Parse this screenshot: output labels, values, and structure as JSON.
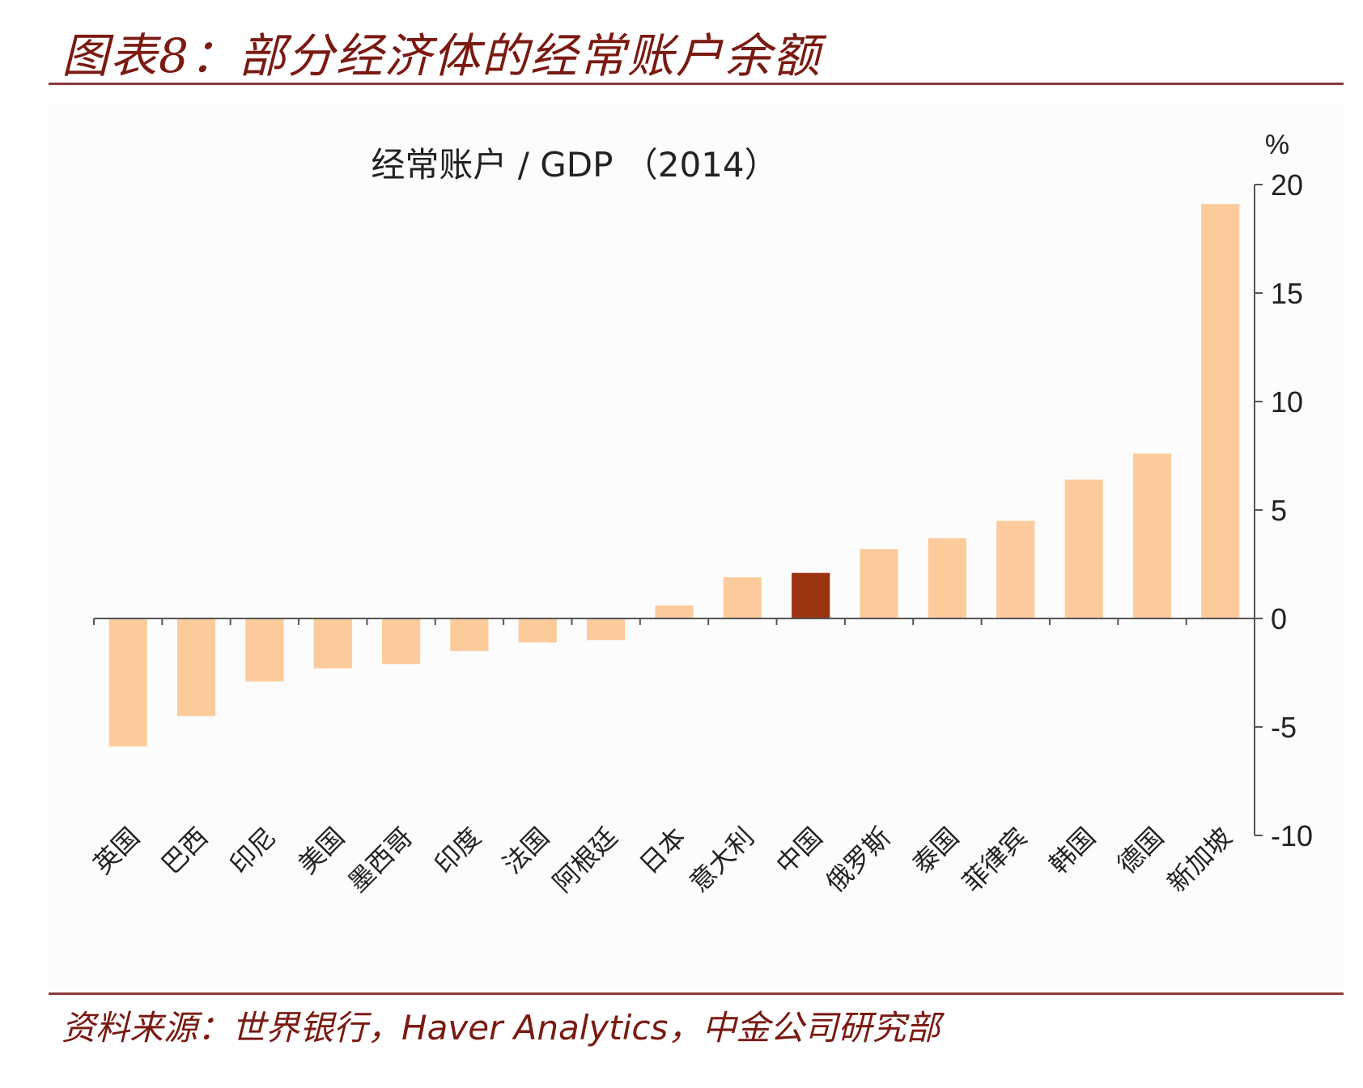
{
  "figure": {
    "title": "图表8：部分经济体的经常账户余额",
    "source_prefix": "资料来源：世界银行，",
    "source_latin": "Haver Analytics",
    "source_suffix": "，中金公司研究部"
  },
  "colors": {
    "title": "#7a1a12",
    "rule": "#8b3a36",
    "bar": "#fccb9b",
    "bar_highlight": "#9b3410",
    "axis": "#555555"
  },
  "chart_data": {
    "type": "bar",
    "title": "经常账户 / GDP （2014）",
    "ylabel": "%",
    "ylim": [
      -10,
      20
    ],
    "yticks": [
      20,
      15,
      10,
      5,
      0,
      -5,
      -10
    ],
    "y_axis_position": "right",
    "categories": [
      "英国",
      "巴西",
      "印尼",
      "美国",
      "墨西哥",
      "印度",
      "法国",
      "阿根廷",
      "日本",
      "意大利",
      "中国",
      "俄罗斯",
      "泰国",
      "菲律宾",
      "韩国",
      "德国",
      "新加坡"
    ],
    "values": [
      -5.9,
      -4.5,
      -2.9,
      -2.3,
      -2.1,
      -1.5,
      -1.1,
      -1.0,
      0.6,
      1.9,
      2.1,
      3.2,
      3.7,
      4.5,
      6.4,
      7.6,
      19.1
    ],
    "highlight": "中国"
  }
}
